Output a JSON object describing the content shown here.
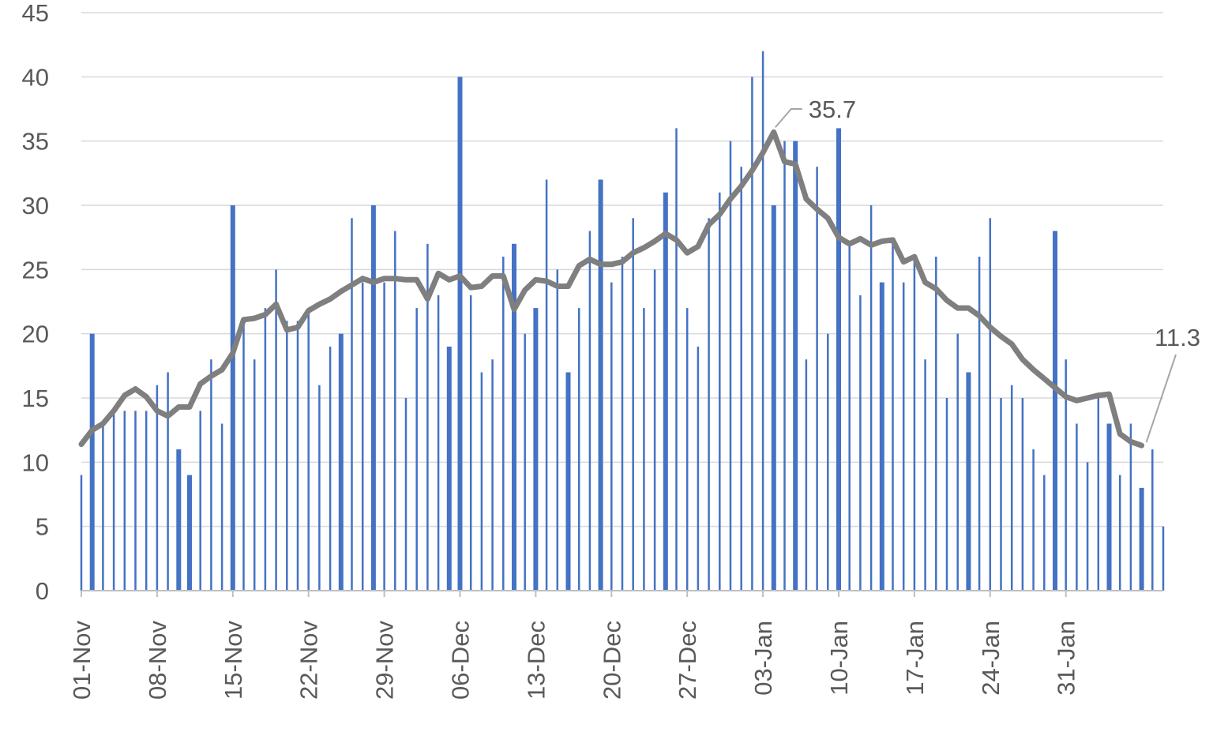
{
  "chart_data": {
    "type": "bar",
    "title": "",
    "xlabel": "",
    "ylabel": "",
    "ylim": [
      0,
      45
    ],
    "yticks": [
      0,
      5,
      10,
      15,
      20,
      25,
      30,
      35,
      40,
      45
    ],
    "grid": true,
    "legend": "none",
    "start_date": "2020-11-01",
    "x_tick_labels": [
      "01-Nov",
      "08-Nov",
      "15-Nov",
      "22-Nov",
      "29-Nov",
      "06-Dec",
      "13-Dec",
      "20-Dec",
      "27-Dec",
      "03-Jan",
      "10-Jan",
      "17-Jan",
      "24-Jan",
      "31-Jan"
    ],
    "series": [
      {
        "kind": "bar",
        "color": "#4472C4",
        "values": [
          9,
          20,
          13,
          14,
          14,
          14,
          14,
          16,
          17,
          11,
          9,
          14,
          18,
          13,
          30,
          21,
          18,
          22,
          25,
          21,
          21,
          22,
          16,
          19,
          20,
          29,
          24,
          30,
          24,
          28,
          15,
          22,
          27,
          23,
          19,
          40,
          23,
          17,
          18,
          26,
          27,
          20,
          22,
          32,
          25,
          17,
          22,
          28,
          32,
          24,
          26,
          29,
          22,
          25,
          31,
          36,
          22,
          19,
          29,
          31,
          35,
          33,
          40,
          42,
          30,
          35,
          35,
          18,
          33,
          20,
          36,
          27,
          23,
          30,
          24,
          27,
          24,
          26,
          18,
          26,
          15,
          20,
          17,
          26,
          29,
          15,
          16,
          15,
          11,
          9,
          28,
          18,
          13,
          10,
          15,
          13,
          9,
          13,
          8,
          11,
          5
        ]
      },
      {
        "kind": "line",
        "color": "#7F7F7F",
        "values": [
          11.4,
          12.5,
          13.0,
          14.0,
          15.2,
          15.7,
          15.1,
          14.0,
          13.6,
          14.3,
          14.3,
          16.1,
          16.7,
          17.2,
          18.5,
          21.1,
          21.2,
          21.5,
          22.3,
          20.3,
          20.5,
          21.8,
          22.3,
          22.7,
          23.3,
          23.8,
          24.3,
          24.0,
          24.3,
          24.3,
          24.2,
          24.2,
          22.7,
          24.7,
          24.2,
          24.5,
          23.6,
          23.7,
          24.5,
          24.5,
          21.9,
          23.4,
          24.2,
          24.1,
          23.7,
          23.7,
          25.3,
          25.8,
          25.4,
          25.4,
          25.6,
          26.3,
          26.7,
          27.2,
          27.8,
          27.3,
          26.3,
          26.8,
          28.5,
          29.3,
          30.5,
          31.5,
          32.7,
          34.1,
          35.7,
          33.4,
          33.2,
          30.5,
          29.7,
          29.0,
          27.5,
          27.0,
          27.4,
          26.9,
          27.2,
          27.3,
          25.6,
          26.0,
          24.0,
          23.5,
          22.6,
          22.0,
          22.0,
          21.4,
          20.5,
          19.8,
          19.2,
          18.0,
          17.2,
          16.5,
          15.8,
          15.1,
          14.8,
          15.0,
          15.2,
          15.3,
          12.2,
          11.6,
          11.3
        ],
        "labels": [
          {
            "index": 64,
            "text": "35.7"
          },
          {
            "index": 98,
            "text": "11.3"
          }
        ]
      }
    ]
  }
}
